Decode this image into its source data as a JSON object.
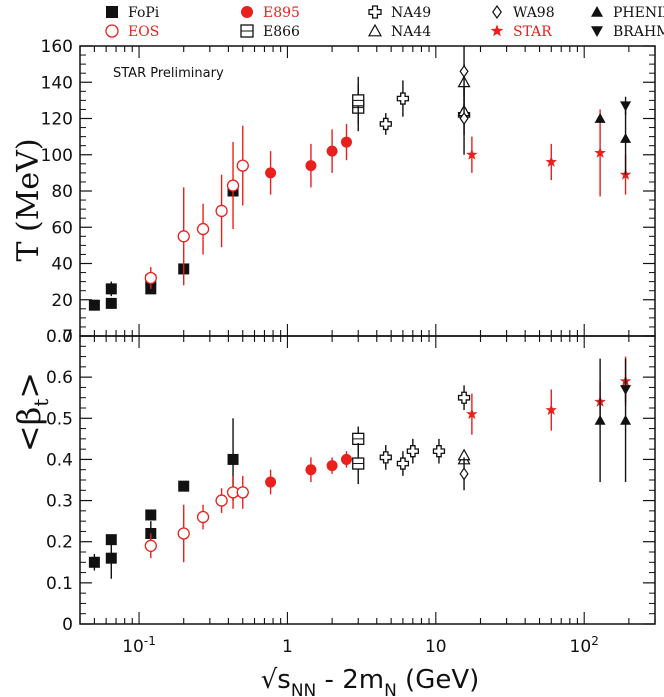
{
  "chart_data": [
    {
      "type": "scatter",
      "panel": "top",
      "title": "",
      "ylabel": "T (MeV)",
      "xscale": "log",
      "xlim": [
        0.04,
        300
      ],
      "ylim": [
        0,
        160
      ],
      "yticks": [
        "0",
        "20",
        "40",
        "60",
        "80",
        "100",
        "120",
        "140",
        "160"
      ],
      "annotation": "STAR Preliminary",
      "series": [
        {
          "name": "FoPi",
          "marker": "filled-square",
          "color": "#111111",
          "points": [
            {
              "x": 0.05,
              "y": 17,
              "err": 0
            },
            {
              "x": 0.065,
              "y": 18,
              "err": 3
            },
            {
              "x": 0.065,
              "y": 26,
              "err": 4
            },
            {
              "x": 0.12,
              "y": 31,
              "err": 0
            },
            {
              "x": 0.12,
              "y": 26,
              "err": 0
            },
            {
              "x": 0.2,
              "y": 37,
              "err": 0
            },
            {
              "x": 0.43,
              "y": 80,
              "err": 0
            }
          ]
        },
        {
          "name": "EOS",
          "marker": "open-circle",
          "color": "#e8211d",
          "points": [
            {
              "x": 0.12,
              "y": 32,
              "err": 6
            },
            {
              "x": 0.2,
              "y": 55,
              "err": 27
            },
            {
              "x": 0.27,
              "y": 59,
              "err": 14
            },
            {
              "x": 0.36,
              "y": 69,
              "err": 20
            },
            {
              "x": 0.43,
              "y": 83,
              "err": 24
            },
            {
              "x": 0.5,
              "y": 94,
              "err": 22
            }
          ]
        },
        {
          "name": "E895",
          "marker": "filled-circle",
          "color": "#e8211d",
          "points": [
            {
              "x": 0.77,
              "y": 90,
              "err": 12
            },
            {
              "x": 1.44,
              "y": 94,
              "err": 12
            },
            {
              "x": 2,
              "y": 102,
              "err": 12
            },
            {
              "x": 2.5,
              "y": 107,
              "err": 10
            }
          ]
        },
        {
          "name": "E866",
          "marker": "open-square",
          "color": "#111111",
          "points": [
            {
              "x": 3,
              "y": 126,
              "err": 13
            },
            {
              "x": 3,
              "y": 130,
              "err": 13
            }
          ]
        },
        {
          "name": "NA49",
          "marker": "open-cross",
          "color": "#111111",
          "points": [
            {
              "x": 4.6,
              "y": 117,
              "err": 6
            },
            {
              "x": 6,
              "y": 131,
              "err": 10
            },
            {
              "x": 15.5,
              "y": 122,
              "err": 22
            }
          ]
        },
        {
          "name": "NA44",
          "marker": "open-triangle",
          "color": "#111111",
          "points": [
            {
              "x": 15.5,
              "y": 140,
              "err": 10
            },
            {
              "x": 15.5,
              "y": 124,
              "err": 7
            }
          ]
        },
        {
          "name": "WA98",
          "marker": "open-diamond",
          "color": "#111111",
          "points": [
            {
              "x": 15.5,
              "y": 146,
              "err": 14
            },
            {
              "x": 15.5,
              "y": 120,
              "err": 9
            }
          ]
        },
        {
          "name": "STAR",
          "marker": "star",
          "color": "#e8211d",
          "points": [
            {
              "x": 17.5,
              "y": 100,
              "err": 10
            },
            {
              "x": 60,
              "y": 96,
              "err": 10
            },
            {
              "x": 128,
              "y": 101,
              "err": 24
            },
            {
              "x": 190,
              "y": 89,
              "err": 11
            }
          ]
        },
        {
          "name": "PHENIX",
          "marker": "filled-triangle-up",
          "color": "#111111",
          "points": [
            {
              "x": 128,
              "y": 120,
              "err": 0
            },
            {
              "x": 190,
              "y": 109,
              "err": 20
            }
          ]
        },
        {
          "name": "BRAHMS",
          "marker": "filled-triangle-down",
          "color": "#111111",
          "points": [
            {
              "x": 190,
              "y": 127,
              "err": 5
            }
          ]
        }
      ]
    },
    {
      "type": "scatter",
      "panel": "bottom",
      "title": "",
      "ylabel": "<βt>",
      "xlabel": "√sNN - 2mN (GeV)",
      "xscale": "log",
      "xlim": [
        0.04,
        300
      ],
      "ylim": [
        0,
        0.7
      ],
      "yticks": [
        "0",
        "0.1",
        "0.2",
        "0.3",
        "0.4",
        "0.5",
        "0.6",
        "0.7"
      ],
      "xticks": [
        "10-1",
        "1",
        "10",
        "102"
      ],
      "series": [
        {
          "name": "FoPi",
          "marker": "filled-square",
          "color": "#111111",
          "points": [
            {
              "x": 0.05,
              "y": 0.15,
              "err": 0.02
            },
            {
              "x": 0.065,
              "y": 0.16,
              "err": 0.05
            },
            {
              "x": 0.065,
              "y": 0.205,
              "err": 0
            },
            {
              "x": 0.12,
              "y": 0.265,
              "err": 0
            },
            {
              "x": 0.12,
              "y": 0.22,
              "err": 0.03
            },
            {
              "x": 0.2,
              "y": 0.335,
              "err": 0.01
            },
            {
              "x": 0.43,
              "y": 0.4,
              "err": 0.1
            }
          ]
        },
        {
          "name": "EOS",
          "marker": "open-circle",
          "color": "#e8211d",
          "points": [
            {
              "x": 0.12,
              "y": 0.19,
              "err": 0.03
            },
            {
              "x": 0.2,
              "y": 0.22,
              "err": 0.07
            },
            {
              "x": 0.27,
              "y": 0.26,
              "err": 0.03
            },
            {
              "x": 0.36,
              "y": 0.3,
              "err": 0.03
            },
            {
              "x": 0.43,
              "y": 0.32,
              "err": 0.04
            },
            {
              "x": 0.5,
              "y": 0.32,
              "err": 0.04
            }
          ]
        },
        {
          "name": "E895",
          "marker": "filled-circle",
          "color": "#e8211d",
          "points": [
            {
              "x": 0.77,
              "y": 0.345,
              "err": 0.03
            },
            {
              "x": 1.44,
              "y": 0.375,
              "err": 0.03
            },
            {
              "x": 2,
              "y": 0.385,
              "err": 0.02
            },
            {
              "x": 2.5,
              "y": 0.4,
              "err": 0.02
            }
          ]
        },
        {
          "name": "E866",
          "marker": "open-square",
          "color": "#111111",
          "points": [
            {
              "x": 3,
              "y": 0.45,
              "err": 0.03
            },
            {
              "x": 3,
              "y": 0.39,
              "err": 0.05
            }
          ]
        },
        {
          "name": "NA49",
          "marker": "open-cross",
          "color": "#111111",
          "points": [
            {
              "x": 4.6,
              "y": 0.405,
              "err": 0.03
            },
            {
              "x": 6,
              "y": 0.39,
              "err": 0.03
            },
            {
              "x": 7,
              "y": 0.42,
              "err": 0.03
            },
            {
              "x": 10.5,
              "y": 0.42,
              "err": 0.03
            },
            {
              "x": 15.5,
              "y": 0.55,
              "err": 0.03
            }
          ]
        },
        {
          "name": "NA44",
          "marker": "open-triangle",
          "color": "#111111",
          "points": [
            {
              "x": 15.5,
              "y": 0.4,
              "err": 0
            },
            {
              "x": 15.5,
              "y": 0.41,
              "err": 0
            }
          ]
        },
        {
          "name": "WA98",
          "marker": "open-diamond",
          "color": "#111111",
          "points": [
            {
              "x": 15.5,
              "y": 0.365,
              "err": 0.04
            }
          ]
        },
        {
          "name": "STAR",
          "marker": "star",
          "color": "#e8211d",
          "points": [
            {
              "x": 17.5,
              "y": 0.51,
              "err": 0.05
            },
            {
              "x": 60,
              "y": 0.52,
              "err": 0.05
            },
            {
              "x": 128,
              "y": 0.54,
              "err": 0.05
            },
            {
              "x": 190,
              "y": 0.59,
              "err": 0.06
            }
          ]
        },
        {
          "name": "PHENIX",
          "marker": "filled-triangle-up",
          "color": "#111111",
          "points": [
            {
              "x": 128,
              "y": 0.495,
              "err": 0.15
            },
            {
              "x": 190,
              "y": 0.495,
              "err": 0.15
            }
          ]
        },
        {
          "name": "BRAHMS",
          "marker": "filled-triangle-down",
          "color": "#111111",
          "points": [
            {
              "x": 190,
              "y": 0.57,
              "err": 0.03
            }
          ]
        }
      ]
    }
  ],
  "legend": [
    {
      "name": "FoPi",
      "marker": "filled-square",
      "color": "#111111"
    },
    {
      "name": "EOS",
      "marker": "open-circle",
      "color": "#e8211d"
    },
    {
      "name": "E895",
      "marker": "filled-circle",
      "color": "#e8211d"
    },
    {
      "name": "E866",
      "marker": "open-square",
      "color": "#111111"
    },
    {
      "name": "NA49",
      "marker": "open-cross",
      "color": "#111111"
    },
    {
      "name": "NA44",
      "marker": "open-triangle",
      "color": "#111111"
    },
    {
      "name": "WA98",
      "marker": "open-diamond",
      "color": "#111111"
    },
    {
      "name": "STAR",
      "marker": "star",
      "color": "#e8211d"
    },
    {
      "name": "PHENIX",
      "marker": "filled-triangle-up",
      "color": "#111111"
    },
    {
      "name": "BRAHMS",
      "marker": "filled-triangle-down",
      "color": "#111111"
    }
  ]
}
